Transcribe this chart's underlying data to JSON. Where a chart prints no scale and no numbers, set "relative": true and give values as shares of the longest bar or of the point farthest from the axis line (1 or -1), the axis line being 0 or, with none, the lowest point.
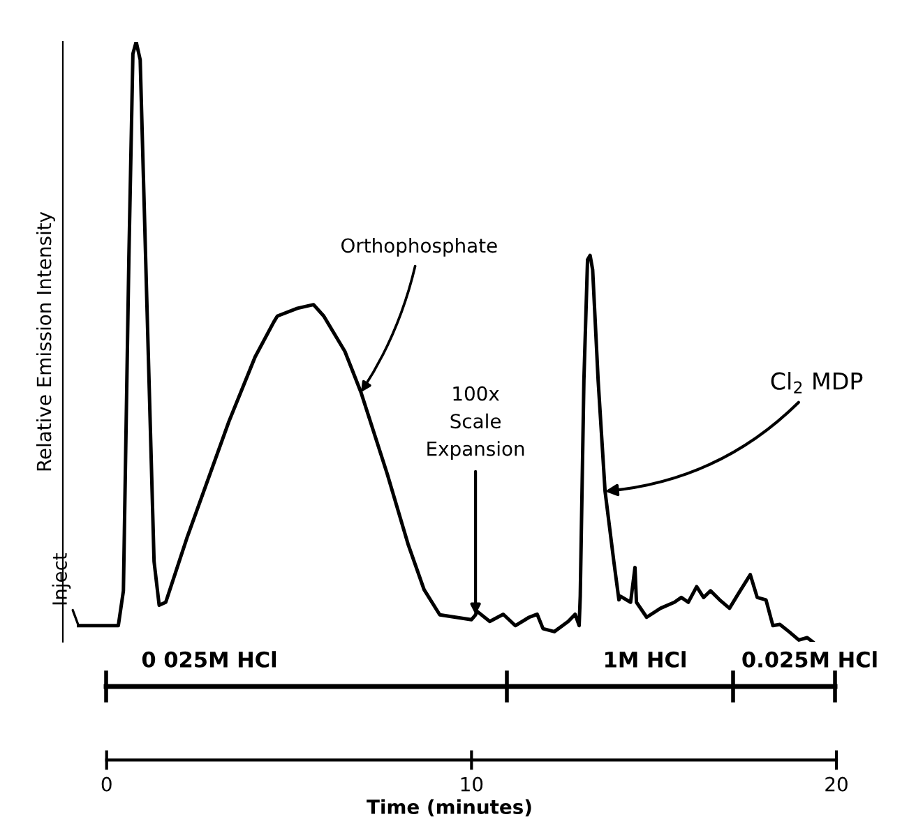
{
  "chart_data": {
    "type": "line",
    "relative": true,
    "xlabel": "Time (minutes)",
    "ylabel": "Relative Emission Intensity",
    "xlim": [
      -1.2,
      20
    ],
    "xticks": [
      0,
      10,
      20
    ],
    "grid": false,
    "legend": false,
    "marker": "none",
    "line_style": "solid",
    "series": [
      {
        "color": "#000000",
        "x": [
          -0.77,
          0.32,
          0.46,
          0.61,
          0.72,
          0.81,
          0.92,
          1.11,
          1.3,
          1.44,
          1.62,
          2.2,
          3.35,
          4.07,
          4.58,
          4.68,
          5.23,
          5.67,
          5.95,
          6.53,
          6.97,
          7.69,
          8.26,
          8.7,
          9.13,
          10.0,
          10.11,
          10.15,
          10.5,
          10.87,
          11.2,
          11.58,
          11.8,
          11.96,
          12.27,
          12.65,
          12.84,
          12.95,
          12.98,
          13.08,
          13.18,
          13.25,
          13.32,
          13.47,
          13.66,
          13.9,
          14.04,
          14.08,
          14.36,
          14.48,
          14.52,
          14.8,
          15.18,
          15.56,
          15.75,
          15.94,
          16.17,
          16.36,
          16.55,
          16.8,
          17.07,
          17.32,
          17.64,
          17.83,
          18.07,
          18.26,
          18.45,
          18.7,
          18.97,
          19.2,
          19.35
        ],
        "values": [
          0.027,
          0.027,
          0.085,
          0.64,
          0.98,
          1.0,
          0.97,
          0.55,
          0.134,
          0.061,
          0.066,
          0.173,
          0.367,
          0.475,
          0.533,
          0.543,
          0.556,
          0.562,
          0.543,
          0.484,
          0.416,
          0.28,
          0.163,
          0.087,
          0.045,
          0.037,
          0.045,
          0.051,
          0.034,
          0.046,
          0.027,
          0.041,
          0.046,
          0.022,
          0.017,
          0.034,
          0.046,
          0.027,
          0.076,
          0.436,
          0.637,
          0.644,
          0.62,
          0.436,
          0.251,
          0.134,
          0.07,
          0.076,
          0.066,
          0.124,
          0.066,
          0.041,
          0.056,
          0.066,
          0.074,
          0.066,
          0.092,
          0.074,
          0.085,
          0.07,
          0.056,
          0.081,
          0.112,
          0.074,
          0.07,
          0.027,
          0.029,
          0.017,
          0.003,
          0.007,
          0.0
        ]
      }
    ],
    "annotations": [
      {
        "text": "Inject",
        "x": -0.77,
        "y": 0.027
      },
      {
        "text": "Orthophosphate",
        "x": 6.97,
        "y": 0.416
      },
      {
        "text": "100x\nScale\nExpansion",
        "x": 10.11,
        "y": 0.045
      },
      {
        "text": "Cl$_{2}$ MDP",
        "x": 13.66,
        "y": 0.251
      },
      "0 025M HCl",
      "1M HCl",
      "0.025M HCl"
    ]
  }
}
